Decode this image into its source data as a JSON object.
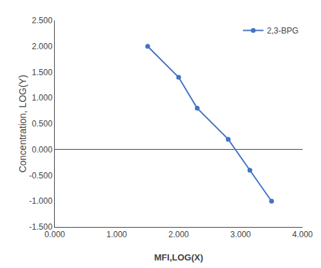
{
  "chart_data": {
    "type": "line",
    "xlabel": "MFI,LOG(X)",
    "ylabel": "Concentration, LOG(Y)",
    "series": [
      {
        "name": "2,3-BPG",
        "color": "#4472C4",
        "marker": "circle",
        "line_style": "solid",
        "x": [
          1.5,
          2.0,
          2.3,
          2.8,
          3.15,
          3.5
        ],
        "values": [
          2.0,
          1.4,
          0.8,
          0.2,
          -0.4,
          -1.0
        ]
      }
    ],
    "xlim": [
      0.0,
      4.0
    ],
    "ylim": [
      -1.5,
      2.5
    ],
    "xticks": [
      {
        "value": 0.0,
        "label": "0.000"
      },
      {
        "value": 1.0,
        "label": "1.000"
      },
      {
        "value": 2.0,
        "label": "2.000"
      },
      {
        "value": 3.0,
        "label": "3.000"
      },
      {
        "value": 4.0,
        "label": "4.000"
      }
    ],
    "yticks": [
      {
        "value": -1.5,
        "label": "-1.500"
      },
      {
        "value": -1.0,
        "label": "-1.000"
      },
      {
        "value": -0.5,
        "label": "-0.500"
      },
      {
        "value": 0.0,
        "label": "0.000"
      },
      {
        "value": 0.5,
        "label": "0.500"
      },
      {
        "value": 1.0,
        "label": "1.000"
      },
      {
        "value": 1.5,
        "label": "1.500"
      },
      {
        "value": 2.0,
        "label": "2.000"
      },
      {
        "value": 2.5,
        "label": "2.500"
      }
    ],
    "grid": false,
    "legend": "upper right"
  }
}
